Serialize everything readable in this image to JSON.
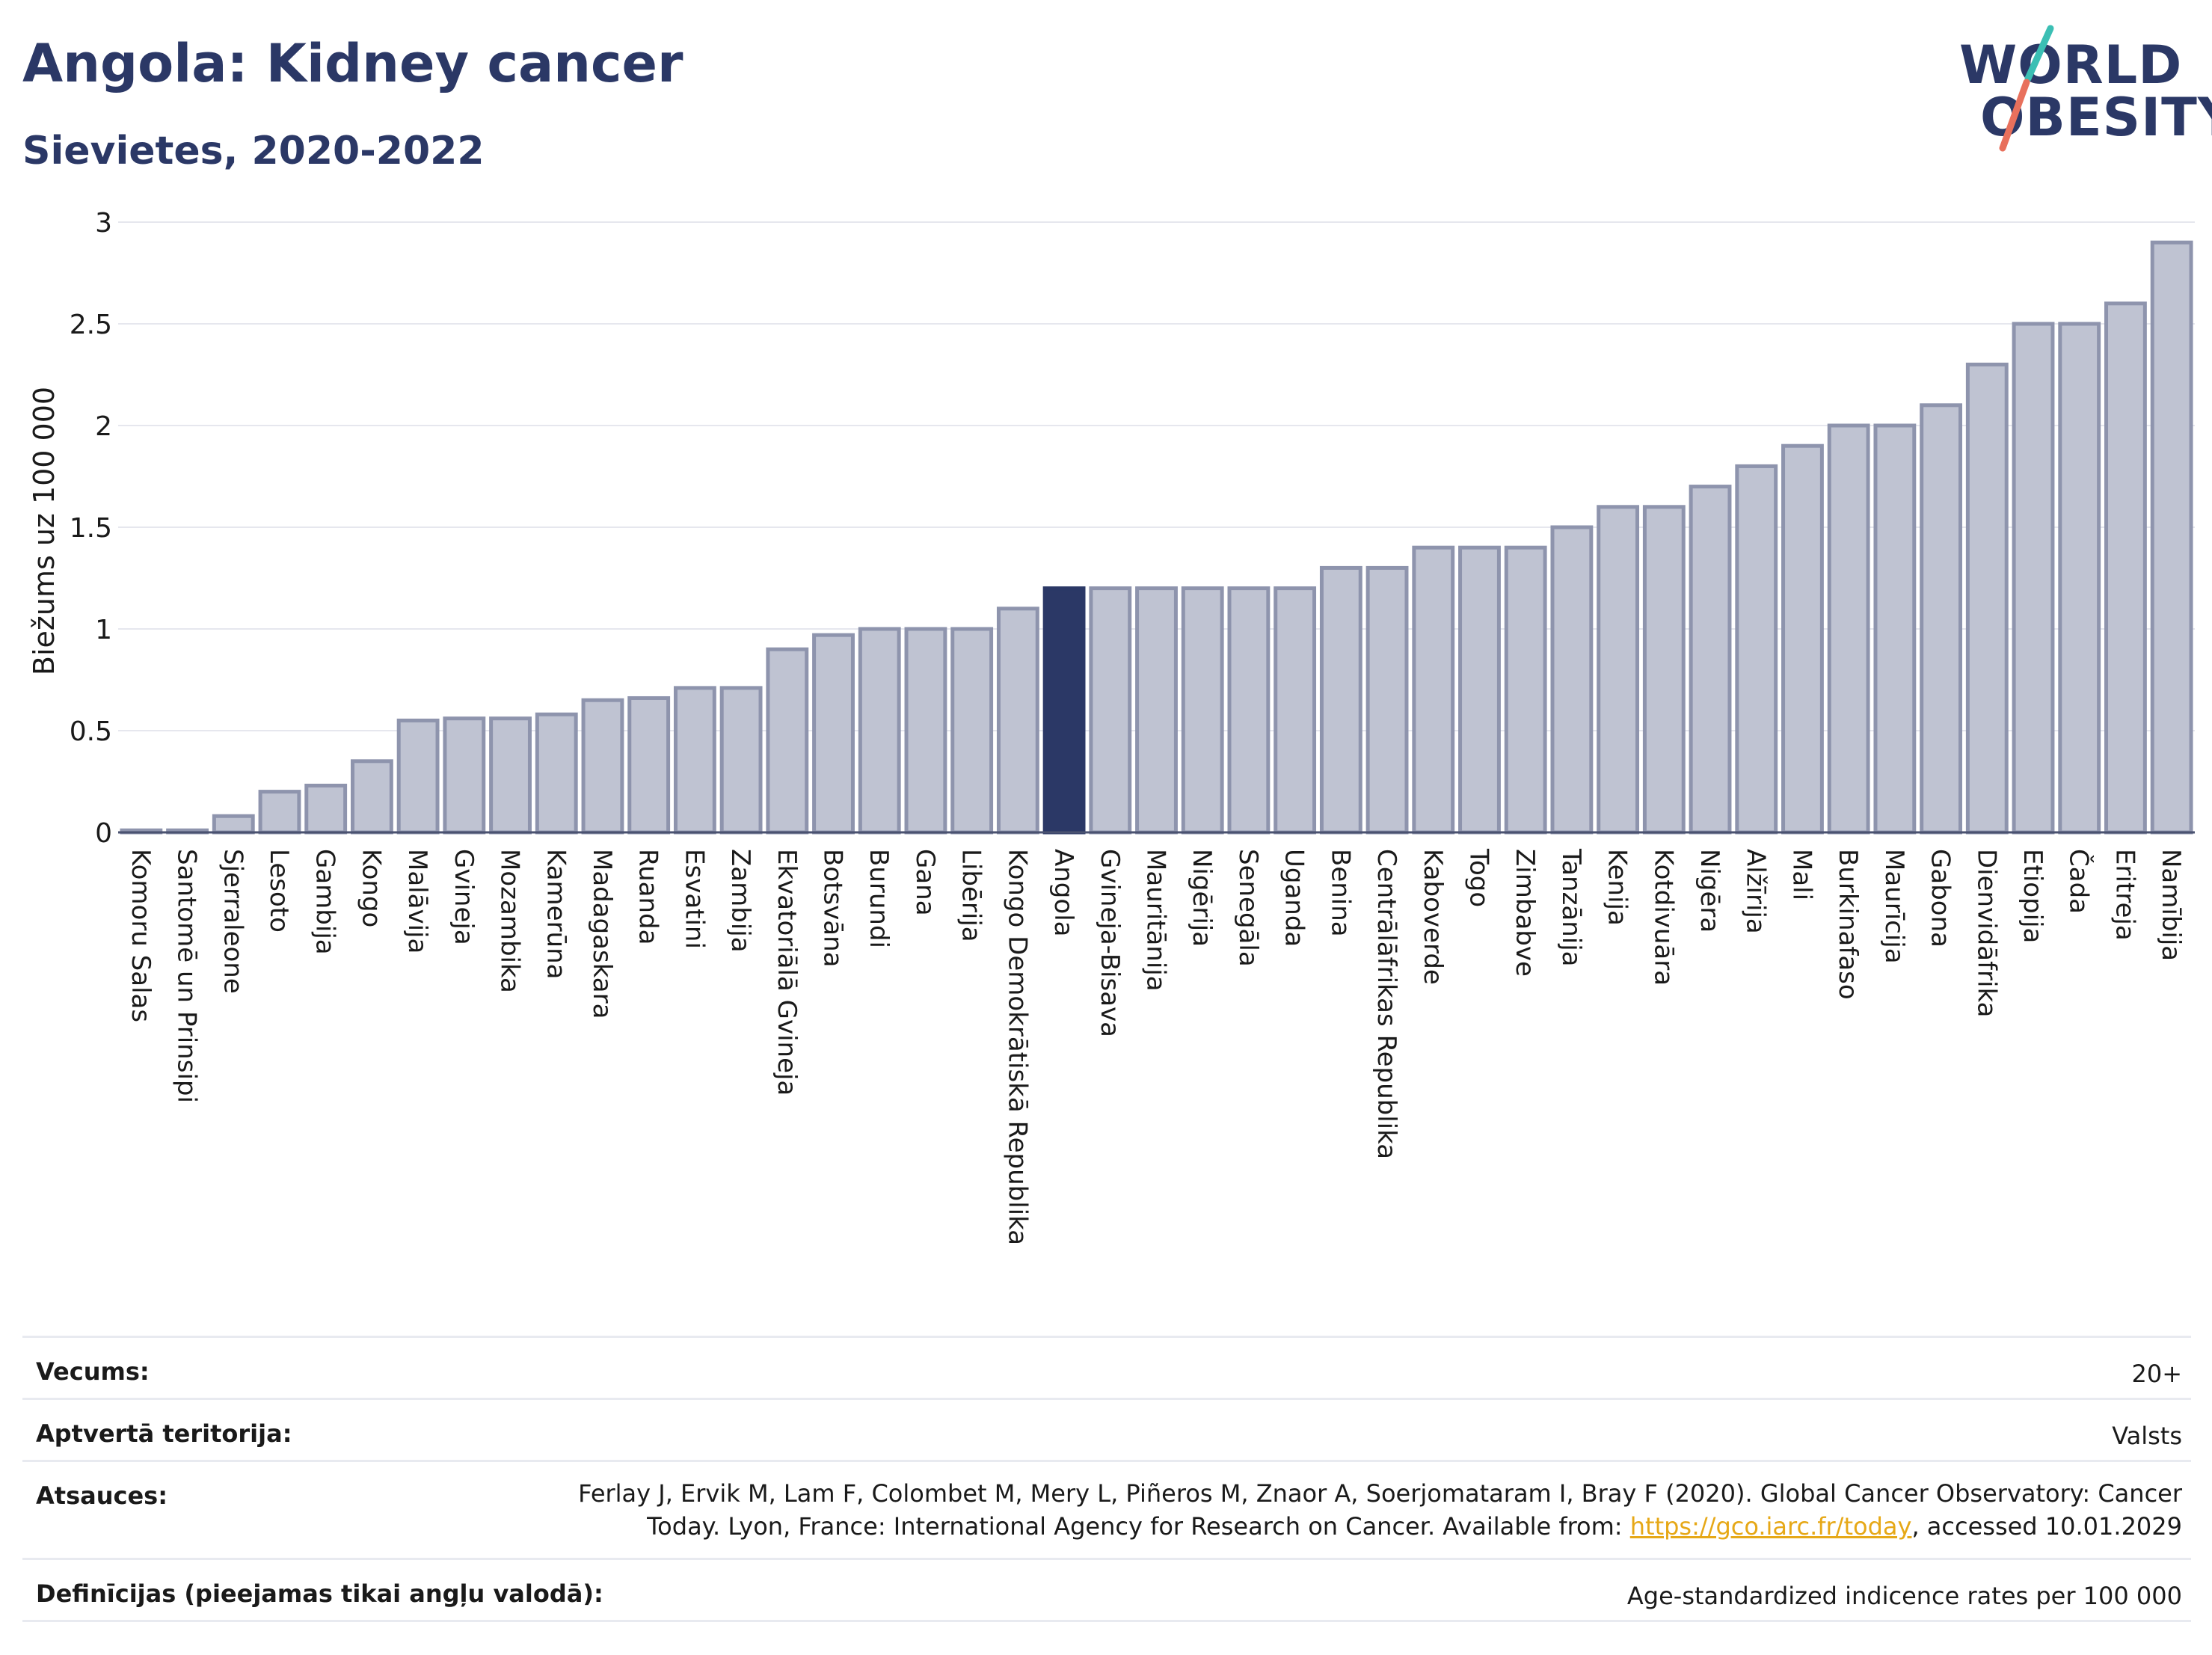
{
  "header": {
    "title": "Angola: Kidney cancer",
    "subtitle": "Sievietes, 2020-2022"
  },
  "logo": {
    "line1": "WORLD",
    "line2": "OBESITY"
  },
  "colors": {
    "bar": "#bfc3d2",
    "bar_stroke": "#8e94ad",
    "highlight": "#2b3866",
    "title": "#2b3866",
    "grid": "#e6e7ee",
    "link": "#e6a817"
  },
  "chart_data": {
    "type": "bar",
    "ylabel": "Biežums uz 100 000",
    "ylim": [
      0,
      3
    ],
    "yticks": [
      "0",
      "0.5",
      "1",
      "1.5",
      "2",
      "2.5",
      "3"
    ],
    "highlight": "Angola",
    "categories": [
      "Komoru Salas",
      "Santomē un Prinsipi",
      "Sjerraleone",
      "Lesoto",
      "Gambija",
      "Kongo",
      "Malāvija",
      "Gvineja",
      "Mozambika",
      "Kamerūna",
      "Madagaskara",
      "Ruanda",
      "Esvatini",
      "Zambija",
      "Ekvatoriālā Gvineja",
      "Botsvāna",
      "Burundi",
      "Gana",
      "Libērija",
      "Kongo Demokrātiskā Republika",
      "Angola",
      "Gvineja-Bisava",
      "Mauritānija",
      "Nigērija",
      "Senegāla",
      "Uganda",
      "Benina",
      "Centrālāfrikas Republika",
      "Kaboverde",
      "Togo",
      "Zimbabve",
      "Tanzānija",
      "Kenija",
      "Kotdivuāra",
      "Nigēra",
      "Alžīrija",
      "Mali",
      "Burkinafaso",
      "Maurīcija",
      "Gabona",
      "Dienvidāfrika",
      "Etiopija",
      "Čada",
      "Eritreja",
      "Namībija"
    ],
    "values": [
      0.01,
      0.01,
      0.08,
      0.2,
      0.23,
      0.35,
      0.55,
      0.56,
      0.56,
      0.58,
      0.65,
      0.66,
      0.71,
      0.71,
      0.9,
      0.97,
      1.0,
      1.0,
      1.0,
      1.1,
      1.2,
      1.2,
      1.2,
      1.2,
      1.2,
      1.2,
      1.3,
      1.3,
      1.4,
      1.4,
      1.4,
      1.5,
      1.6,
      1.6,
      1.7,
      1.8,
      1.9,
      2.0,
      2.0,
      2.1,
      2.3,
      2.5,
      2.5,
      2.6,
      2.9
    ]
  },
  "info": {
    "age_label": "Vecums:",
    "age_value": "20+",
    "territory_label": "Aptvertā teritorija:",
    "territory_value": "Valsts",
    "refs_label": "Atsauces:",
    "refs_text1": "Ferlay J, Ervik M, Lam F, Colombet M, Mery L, Piñeros M, Znaor A, Soerjomataram I, Bray F (2020). Global Cancer Observatory: Cancer",
    "refs_text2": "Today. Lyon, France: International Agency for Research on Cancer. Available from: ",
    "refs_link": "https://gco.iarc.fr/today",
    "refs_text3": ", accessed 10.01.2029",
    "defs_label": "Definīcijas (pieejamas tikai angļu valodā):",
    "defs_value": "Age-standardized indicence rates per 100 000"
  }
}
